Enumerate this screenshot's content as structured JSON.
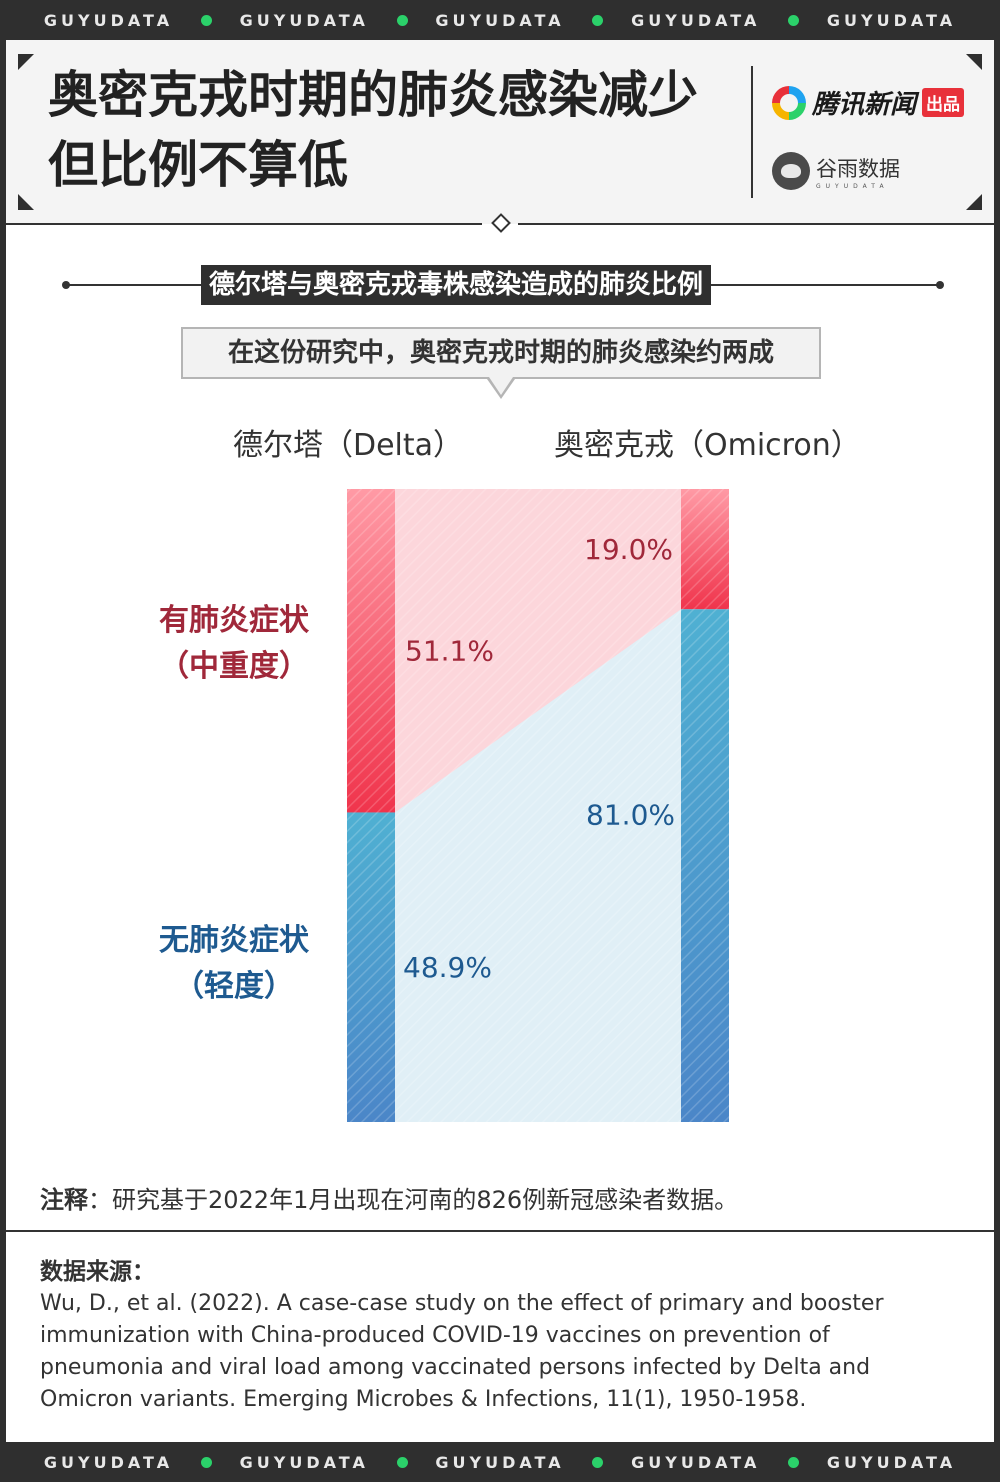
{
  "brand_strip": {
    "items": [
      "GUYUDATA",
      "GUYUDATA",
      "GUYUDATA",
      "GUYUDATA",
      "GUYUDATA"
    ]
  },
  "header": {
    "title_line1": "奥密克戎时期的肺炎感染减少",
    "title_line2": "但比例不算低",
    "logo_tencent": "腾讯新闻",
    "logo_tencent_badge": "出品",
    "logo_guyu": "谷雨数据",
    "logo_guyu_en": "GUYUDATA"
  },
  "chart_data": {
    "type": "bar",
    "title": "德尔塔与奥密克戎毒株感染造成的肺炎比例",
    "subtitle": "在这份研究中，奥密克戎时期的肺炎感染约两成",
    "categories": [
      "德尔塔（Delta）",
      "奥密克戎（Omicron）"
    ],
    "series": [
      {
        "name": "有肺炎症状（中重度）",
        "name_line1": "有肺炎症状",
        "name_line2": "（中重度）",
        "values": [
          51.1,
          19.0
        ],
        "labels": [
          "51.1%",
          "19.0%"
        ],
        "color": "#f0455a"
      },
      {
        "name": "无肺炎症状（轻度）",
        "name_line1": "无肺炎症状",
        "name_line2": "（轻度）",
        "values": [
          48.9,
          81.0
        ],
        "labels": [
          "48.9%",
          "81.0%"
        ],
        "color": "#3f9bc9"
      }
    ],
    "stacked": true,
    "ylim": [
      0,
      100
    ],
    "xlabel": "",
    "ylabel": ""
  },
  "footnote": {
    "label": "注释",
    "text": "：研究基于2022年1月出现在河南的826例新冠感染者数据。"
  },
  "source": {
    "label": "数据来源：",
    "text": "Wu, D., et al. (2022). A case-case study on the effect of primary and booster immunization with China-produced COVID-19 vaccines on prevention of pneumonia and viral load among vaccinated persons infected by Delta and Omicron variants. Emerging Microbes & Infections, 11(1), 1950-1958."
  }
}
